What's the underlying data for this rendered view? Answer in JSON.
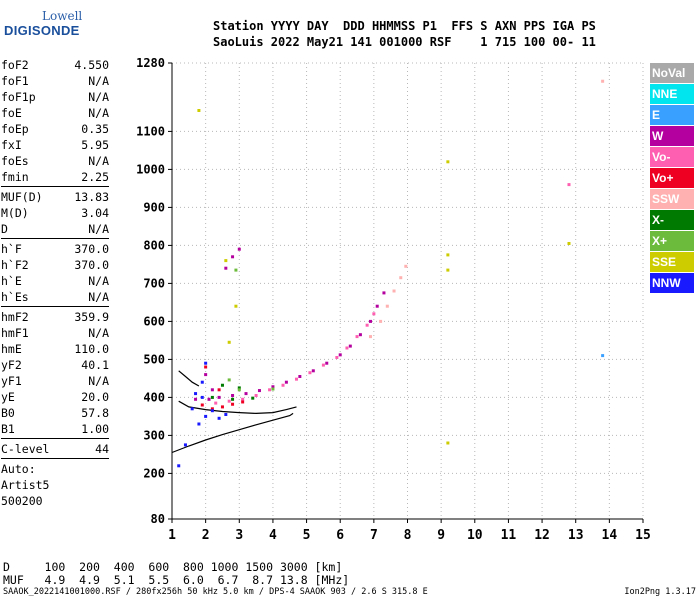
{
  "logo": {
    "line1": "Lowell",
    "line2": "DIGISONDE"
  },
  "header": {
    "line1": "Station YYYY DAY  DDD HHMMSS P1  FFS S AXN PPS IGA PS",
    "line2": "SaoLuis 2022 May21 141 001000 RSF    1 715 100 00- 11"
  },
  "params_group1": [
    {
      "label": "foF2",
      "value": "4.550"
    },
    {
      "label": "foF1",
      "value": "N/A"
    },
    {
      "label": "foF1p",
      "value": "N/A"
    },
    {
      "label": "foE",
      "value": "N/A"
    },
    {
      "label": "foEp",
      "value": "0.35"
    },
    {
      "label": "fxI",
      "value": "5.95"
    },
    {
      "label": "foEs",
      "value": "N/A"
    },
    {
      "label": "fmin",
      "value": "2.25"
    }
  ],
  "params_group2": [
    {
      "label": "MUF(D)",
      "value": "13.83"
    },
    {
      "label": "M(D)",
      "value": "3.04"
    },
    {
      "label": "D",
      "value": "N/A"
    }
  ],
  "params_group3": [
    {
      "label": "h`F",
      "value": "370.0"
    },
    {
      "label": "h`F2",
      "value": "370.0"
    },
    {
      "label": "h`E",
      "value": "N/A"
    },
    {
      "label": "h`Es",
      "value": "N/A"
    }
  ],
  "params_group4": [
    {
      "label": "hmF2",
      "value": "359.9"
    },
    {
      "label": "hmF1",
      "value": "N/A"
    },
    {
      "label": "hmE",
      "value": "110.0"
    },
    {
      "label": "yF2",
      "value": "40.1"
    },
    {
      "label": "yF1",
      "value": "N/A"
    },
    {
      "label": "yE",
      "value": "20.0"
    },
    {
      "label": "B0",
      "value": "57.8"
    },
    {
      "label": "B1",
      "value": "1.00"
    }
  ],
  "clevel": {
    "label": "C-level",
    "value": "44"
  },
  "auto": {
    "line1": "Auto:",
    "line2": "Artist5",
    "line3": "500200"
  },
  "legend": [
    {
      "label": "NoVal",
      "color": "#a9a9a9"
    },
    {
      "label": "NNE",
      "color": "#00e5ee"
    },
    {
      "label": "E",
      "color": "#3aa0ff"
    },
    {
      "label": "W",
      "color": "#b4009e"
    },
    {
      "label": "Vo-",
      "color": "#ff5fb0"
    },
    {
      "label": "Vo+",
      "color": "#ee0022"
    },
    {
      "label": "SSW",
      "color": "#ffb0b0"
    },
    {
      "label": "X-",
      "color": "#007a00"
    },
    {
      "label": "X+",
      "color": "#6cbb3c"
    },
    {
      "label": "SSE",
      "color": "#cccc00"
    },
    {
      "label": "NNW",
      "color": "#1a1aff"
    }
  ],
  "muf_table": {
    "d_line": "D     100  200  400  600  800 1000 1500 3000 [km]",
    "m_line": "MUF   4.9  4.9  5.1  5.5  6.0  6.7  8.7 13.8 [MHz]"
  },
  "footer": {
    "left": "SAAOK_2022141001000.RSF / 280fx256h 50 kHz 5.0 km / DPS-4 SAAOK 903 / 2.6 S 315.8 E",
    "right": "Ion2Png 1.3.17"
  },
  "chart_data": {
    "type": "scatter",
    "xlabel": "",
    "ylabel": "",
    "xlim": [
      1,
      15
    ],
    "ylim": [
      80,
      1280
    ],
    "x_ticks": [
      1,
      2,
      3,
      4,
      5,
      6,
      7,
      8,
      9,
      10,
      11,
      12,
      13,
      14,
      15
    ],
    "y_ticks": [
      80,
      200,
      300,
      400,
      500,
      600,
      700,
      800,
      900,
      1000,
      1100,
      1280
    ],
    "grid": true,
    "series": [
      {
        "name": "W",
        "color": "#b4009e",
        "points": [
          [
            2.1,
            395
          ],
          [
            2.4,
            400
          ],
          [
            2.8,
            405
          ],
          [
            3.2,
            410
          ],
          [
            3.6,
            418
          ],
          [
            4.0,
            428
          ],
          [
            4.4,
            440
          ],
          [
            4.8,
            455
          ],
          [
            5.2,
            470
          ],
          [
            5.6,
            490
          ],
          [
            6.0,
            512
          ],
          [
            6.3,
            535
          ],
          [
            6.6,
            565
          ],
          [
            6.9,
            600
          ],
          [
            7.1,
            640
          ],
          [
            7.3,
            675
          ],
          [
            2.6,
            740
          ],
          [
            2.8,
            770
          ],
          [
            3.0,
            790
          ],
          [
            2.2,
            420
          ],
          [
            1.7,
            395
          ],
          [
            2.0,
            460
          ]
        ]
      },
      {
        "name": "Vo-",
        "color": "#ff5fb0",
        "points": [
          [
            2.3,
            385
          ],
          [
            2.7,
            390
          ],
          [
            3.1,
            395
          ],
          [
            3.5,
            405
          ],
          [
            3.9,
            420
          ],
          [
            4.3,
            432
          ],
          [
            4.7,
            448
          ],
          [
            5.1,
            465
          ],
          [
            5.5,
            485
          ],
          [
            5.9,
            505
          ],
          [
            6.2,
            530
          ],
          [
            6.5,
            560
          ],
          [
            6.8,
            590
          ],
          [
            7.0,
            620
          ],
          [
            12.8,
            960
          ]
        ]
      },
      {
        "name": "Vo+",
        "color": "#ee0022",
        "points": [
          [
            1.9,
            380
          ],
          [
            2.2,
            370
          ],
          [
            2.5,
            375
          ],
          [
            2.8,
            382
          ],
          [
            3.1,
            388
          ],
          [
            2.0,
            480
          ],
          [
            2.4,
            420
          ]
        ]
      },
      {
        "name": "SSW",
        "color": "#ffb0b0",
        "points": [
          [
            6.9,
            560
          ],
          [
            7.2,
            600
          ],
          [
            7.4,
            640
          ],
          [
            7.6,
            680
          ],
          [
            7.8,
            715
          ],
          [
            7.95,
            745
          ],
          [
            13.8,
            1232
          ]
        ]
      },
      {
        "name": "NNW",
        "color": "#1a1aff",
        "points": [
          [
            1.6,
            370
          ],
          [
            1.8,
            330
          ],
          [
            1.9,
            400
          ],
          [
            2.0,
            350
          ],
          [
            2.2,
            365
          ],
          [
            2.4,
            345
          ],
          [
            2.6,
            355
          ],
          [
            1.7,
            410
          ],
          [
            1.9,
            440
          ],
          [
            2.0,
            490
          ],
          [
            1.2,
            220
          ],
          [
            1.4,
            275
          ]
        ]
      },
      {
        "name": "X-",
        "color": "#007a00",
        "points": [
          [
            2.2,
            400
          ],
          [
            2.8,
            395
          ],
          [
            3.4,
            398
          ],
          [
            3.0,
            425
          ],
          [
            2.5,
            432
          ]
        ]
      },
      {
        "name": "X+",
        "color": "#6cbb3c",
        "points": [
          [
            3.0,
            420
          ],
          [
            4.0,
            422
          ],
          [
            2.7,
            446
          ],
          [
            2.9,
            735
          ]
        ]
      },
      {
        "name": "SSE",
        "color": "#cccc00",
        "points": [
          [
            9.2,
            1020
          ],
          [
            9.2,
            280
          ],
          [
            9.2,
            775
          ],
          [
            9.2,
            735
          ],
          [
            12.8,
            805
          ],
          [
            1.8,
            1155
          ],
          [
            2.9,
            640
          ],
          [
            2.7,
            545
          ],
          [
            2.6,
            760
          ]
        ]
      },
      {
        "name": "E",
        "color": "#3aa0ff",
        "points": [
          [
            13.8,
            510
          ]
        ]
      }
    ],
    "profile_lines": [
      [
        [
          1.0,
          255
        ],
        [
          1.5,
          272
        ],
        [
          2.0,
          288
        ],
        [
          2.5,
          302
        ],
        [
          3.0,
          315
        ],
        [
          3.5,
          328
        ],
        [
          4.0,
          340
        ],
        [
          4.5,
          352
        ],
        [
          4.6,
          358
        ]
      ],
      [
        [
          1.2,
          390
        ],
        [
          1.5,
          375
        ],
        [
          2.0,
          368
        ],
        [
          2.5,
          363
        ],
        [
          3.0,
          360
        ],
        [
          3.5,
          358
        ],
        [
          4.0,
          360
        ],
        [
          4.4,
          368
        ],
        [
          4.7,
          375
        ]
      ],
      [
        [
          1.2,
          470
        ],
        [
          1.4,
          455
        ],
        [
          1.6,
          440
        ],
        [
          1.8,
          430
        ]
      ]
    ]
  }
}
